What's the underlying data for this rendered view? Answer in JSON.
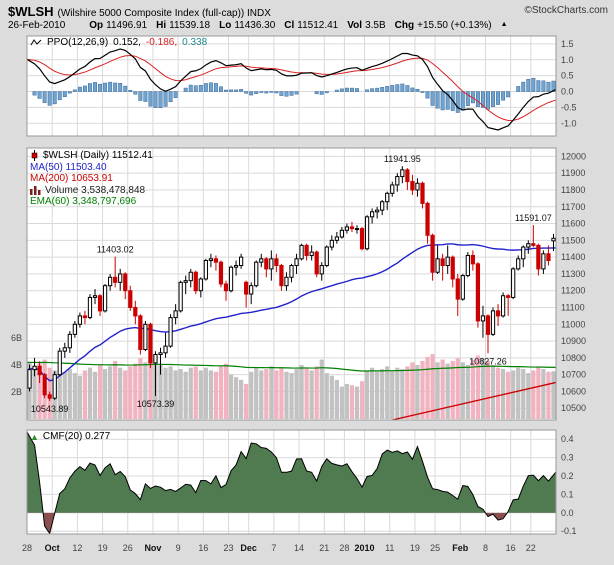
{
  "header": {
    "symbol": "$WLSH",
    "description": "(Wilshire 5000 Composite Index (full-cap)) INDX",
    "source": "©StockCharts.com",
    "date": "26-Feb-2010",
    "quote": {
      "op_label": "Op",
      "op": "11496.91",
      "hi_label": "Hi",
      "hi": "11539.18",
      "lo_label": "Lo",
      "lo": "11436.30",
      "cl_label": "Cl",
      "cl": "11512.41",
      "vol_label": "Vol",
      "vol": "3.5B",
      "chg_label": "Chg",
      "chg": "+15.50 (+0.13%)"
    }
  },
  "legends": {
    "ppo": {
      "name": "PPO(12,26,9)",
      "line": "0.152,",
      "signal": "-0.186,",
      "hist": "0.338"
    },
    "main": {
      "series": "$WLSH (Daily) 11512.41",
      "ma50": "MA(50) 11503.40",
      "ma200": "MA(200) 10653.91",
      "volume": "Volume 3,538,478,848",
      "ema60": "EMA(60) 3,348,797,696"
    },
    "cmf": {
      "name": "CMF(20) 0.277"
    }
  },
  "icons": {
    "ppo": "line-squiggle-icon",
    "series": "candlestick-icon",
    "volume": "volume-bars-icon",
    "cmf": "area-triangle-icon",
    "change": "up-triangle-icon"
  },
  "colors": {
    "background": "#dcdcdc",
    "panel_bg": "#ffffff",
    "grid": "#d9d9d9",
    "border": "#999999",
    "axis_text": "#444444",
    "candle_up": "#000000",
    "candle_down": "#cc0000",
    "ma50": "#2222cc",
    "ma200": "#cc0000",
    "vol_up": "#c2c2c2",
    "vol_down": "#f2b3c0",
    "vol_ema": "#008000",
    "ppo_line": "#000000",
    "ppo_signal": "#dd2222",
    "ppo_hist": "#6fa3d0",
    "ppo_hist_border": "#39689a",
    "ppo_hist_text": "#1f8a8a",
    "cmf_pos": "#507a50",
    "cmf_neg": "#8a4f4f",
    "cmf_icon": "#2f8f2f",
    "ema60_text": "#008000",
    "volume_text": "#222222",
    "series_text": "#000000",
    "brand_text": "#333333"
  },
  "chart_data": {
    "type": "candlestick",
    "title": "$WLSH Wilshire 5000 Composite Index (full-cap), Daily",
    "panels": [
      "PPO(12,26,9)",
      "Price with MA(50), MA(200), Volume, EMA(60)",
      "CMF(20)"
    ],
    "legend_position": "top-left of each panel",
    "grid": true,
    "price_axis": {
      "min": 10500,
      "max": 12000,
      "step": 100
    },
    "ppo_axis": {
      "min": -1.0,
      "max": 1.5,
      "step": 0.5
    },
    "cmf_axis": {
      "min": -0.1,
      "max": 0.4,
      "step": 0.1
    },
    "volume_axis_labels": [
      [
        6,
        "6B"
      ],
      [
        4,
        "4B"
      ],
      [
        2,
        "2B"
      ]
    ],
    "x_ticks": [
      [
        0,
        "28",
        0
      ],
      [
        5,
        "Oct",
        1
      ],
      [
        10,
        "12",
        0
      ],
      [
        15,
        "19",
        0
      ],
      [
        20,
        "26",
        0
      ],
      [
        25,
        "Nov",
        1
      ],
      [
        30,
        "9",
        0
      ],
      [
        35,
        "16",
        0
      ],
      [
        40,
        "23",
        0
      ],
      [
        44,
        "Dec",
        1
      ],
      [
        49,
        "7",
        0
      ],
      [
        54,
        "14",
        0
      ],
      [
        59,
        "21",
        0
      ],
      [
        63,
        "28",
        0
      ],
      [
        67,
        "2010",
        1
      ],
      [
        72,
        "11",
        0
      ],
      [
        77,
        "19",
        0
      ],
      [
        81,
        "25",
        0
      ],
      [
        86,
        "Feb",
        1
      ],
      [
        91,
        "8",
        0
      ],
      [
        96,
        "16",
        0
      ],
      [
        100,
        "22",
        0
      ]
    ],
    "candles_ohlc": [
      [
        10620,
        10760,
        10600,
        10730
      ],
      [
        10730,
        10800,
        10690,
        10750
      ],
      [
        10750,
        10780,
        10650,
        10700
      ],
      [
        10700,
        10710,
        10560,
        10580
      ],
      [
        10580,
        10600,
        10543.89,
        10560
      ],
      [
        10560,
        10720,
        10550,
        10700
      ],
      [
        10700,
        10860,
        10690,
        10840
      ],
      [
        10840,
        10890,
        10800,
        10860
      ],
      [
        10860,
        10960,
        10830,
        10940
      ],
      [
        10940,
        11020,
        10920,
        11000
      ],
      [
        11000,
        11070,
        10980,
        11050
      ],
      [
        11050,
        11080,
        11000,
        11040
      ],
      [
        11040,
        11180,
        11030,
        11160
      ],
      [
        11160,
        11210,
        11120,
        11170
      ],
      [
        11170,
        11180,
        11050,
        11080
      ],
      [
        11080,
        11240,
        11070,
        11230
      ],
      [
        11230,
        11300,
        11200,
        11280
      ],
      [
        11280,
        11403.02,
        11220,
        11250
      ],
      [
        11250,
        11330,
        11200,
        11300
      ],
      [
        11300,
        11310,
        11150,
        11200
      ],
      [
        11200,
        11230,
        11080,
        11100
      ],
      [
        11100,
        11140,
        11000,
        11050
      ],
      [
        11050,
        11060,
        10820,
        10850
      ],
      [
        10850,
        11020,
        10840,
        11000
      ],
      [
        11000,
        11010,
        10740,
        10770
      ],
      [
        10770,
        10840,
        10573.39,
        10820
      ],
      [
        10820,
        10860,
        10700,
        10830
      ],
      [
        10830,
        10950,
        10800,
        10870
      ],
      [
        10870,
        11060,
        10860,
        11040
      ],
      [
        11040,
        11120,
        11000,
        11080
      ],
      [
        11080,
        11260,
        11070,
        11250
      ],
      [
        11250,
        11290,
        11180,
        11260
      ],
      [
        11260,
        11330,
        11220,
        11310
      ],
      [
        11310,
        11320,
        11180,
        11200
      ],
      [
        11200,
        11280,
        11160,
        11270
      ],
      [
        11270,
        11390,
        11260,
        11380
      ],
      [
        11380,
        11420,
        11340,
        11390
      ],
      [
        11390,
        11410,
        11320,
        11370
      ],
      [
        11370,
        11380,
        11220,
        11240
      ],
      [
        11240,
        11260,
        11140,
        11200
      ],
      [
        11200,
        11350,
        11190,
        11340
      ],
      [
        11340,
        11380,
        11290,
        11350
      ],
      [
        11350,
        11420,
        11330,
        11400
      ],
      [
        11250,
        11260,
        11100,
        11180
      ],
      [
        11180,
        11250,
        11120,
        11230
      ],
      [
        11230,
        11380,
        11220,
        11370
      ],
      [
        11370,
        11420,
        11340,
        11390
      ],
      [
        11390,
        11400,
        11280,
        11330
      ],
      [
        11330,
        11440,
        11260,
        11390
      ],
      [
        11390,
        11420,
        11310,
        11350
      ],
      [
        11350,
        11360,
        11200,
        11230
      ],
      [
        11230,
        11310,
        11200,
        11280
      ],
      [
        11280,
        11360,
        11250,
        11350
      ],
      [
        11350,
        11420,
        11300,
        11390
      ],
      [
        11390,
        11480,
        11380,
        11470
      ],
      [
        11470,
        11480,
        11380,
        11410
      ],
      [
        11410,
        11470,
        11380,
        11430
      ],
      [
        11430,
        11440,
        11280,
        11300
      ],
      [
        11300,
        11370,
        11260,
        11350
      ],
      [
        11350,
        11470,
        11340,
        11460
      ],
      [
        11460,
        11530,
        11440,
        11500
      ],
      [
        11500,
        11550,
        11480,
        11520
      ],
      [
        11520,
        11580,
        11510,
        11560
      ],
      [
        11560,
        11600,
        11540,
        11580
      ],
      [
        11580,
        11610,
        11550,
        11570
      ],
      [
        11570,
        11590,
        11540,
        11570
      ],
      [
        11570,
        11580,
        11440,
        11450
      ],
      [
        11450,
        11650,
        11440,
        11640
      ],
      [
        11640,
        11690,
        11600,
        11670
      ],
      [
        11670,
        11700,
        11630,
        11680
      ],
      [
        11680,
        11740,
        11650,
        11730
      ],
      [
        11730,
        11790,
        11680,
        11780
      ],
      [
        11780,
        11850,
        11760,
        11830
      ],
      [
        11830,
        11900,
        11790,
        11880
      ],
      [
        11880,
        11941.95,
        11840,
        11920
      ],
      [
        11920,
        11930,
        11800,
        11850
      ],
      [
        11850,
        11890,
        11770,
        11800
      ],
      [
        11800,
        11870,
        11760,
        11840
      ],
      [
        11840,
        11850,
        11690,
        11720
      ],
      [
        11720,
        11730,
        11480,
        11530
      ],
      [
        11530,
        11540,
        11260,
        11310
      ],
      [
        11310,
        11470,
        11300,
        11390
      ],
      [
        11390,
        11420,
        11260,
        11350
      ],
      [
        11350,
        11470,
        11300,
        11400
      ],
      [
        11400,
        11410,
        11220,
        11270
      ],
      [
        11270,
        11300,
        11050,
        11150
      ],
      [
        11150,
        11300,
        11140,
        11290
      ],
      [
        11290,
        11430,
        11280,
        11410
      ],
      [
        11410,
        11440,
        11320,
        11360
      ],
      [
        11360,
        11370,
        10980,
        11020
      ],
      [
        11020,
        11110,
        10920,
        11050
      ],
      [
        11050,
        11060,
        10827.26,
        10940
      ],
      [
        10940,
        11100,
        10930,
        11080
      ],
      [
        11080,
        11120,
        10990,
        11050
      ],
      [
        11050,
        11190,
        11040,
        11170
      ],
      [
        11170,
        11180,
        11050,
        11160
      ],
      [
        11160,
        11340,
        11150,
        11330
      ],
      [
        11330,
        11410,
        11320,
        11390
      ],
      [
        11390,
        11470,
        11340,
        11460
      ],
      [
        11460,
        11500,
        11420,
        11480
      ],
      [
        11480,
        11591.07,
        11460,
        11470
      ],
      [
        11470,
        11480,
        11290,
        11330
      ],
      [
        11330,
        11440,
        11300,
        11420
      ],
      [
        11420,
        11470,
        11350,
        11380
      ],
      [
        11496.91,
        11539.18,
        11436.3,
        11512.41
      ]
    ],
    "volumes_billions": [
      4.2,
      3.9,
      4.1,
      4.4,
      3.8,
      3.6,
      3.9,
      3.5,
      3.7,
      3.4,
      3.2,
      3.6,
      3.8,
      3.5,
      4.0,
      3.7,
      3.9,
      4.3,
      3.8,
      3.6,
      3.9,
      4.1,
      4.5,
      4.2,
      4.4,
      4.6,
      4.0,
      3.8,
      3.9,
      3.6,
      3.7,
      3.5,
      3.8,
      3.9,
      3.6,
      3.8,
      3.6,
      3.5,
      3.9,
      4.1,
      3.3,
      3.1,
      2.9,
      2.6,
      3.5,
      3.8,
      3.6,
      3.7,
      3.9,
      3.6,
      3.8,
      3.5,
      3.4,
      3.7,
      4.0,
      3.8,
      3.6,
      3.9,
      4.4,
      3.4,
      3.2,
      2.9,
      2.4,
      2.6,
      2.5,
      2.4,
      2.8,
      3.6,
      3.8,
      3.5,
      3.7,
      3.9,
      3.6,
      3.8,
      3.7,
      3.9,
      4.2,
      4.0,
      4.3,
      4.6,
      4.8,
      4.2,
      4.4,
      4.1,
      4.3,
      4.5,
      4.2,
      4.0,
      4.4,
      4.7,
      4.5,
      4.3,
      4.0,
      3.8,
      3.7,
      3.5,
      3.6,
      3.8,
      3.7,
      3.4,
      3.6,
      3.9,
      3.7,
      3.5,
      3.54
    ],
    "annotations": [
      {
        "i": 4,
        "price": 10543.89,
        "label": "10543.89",
        "pos": "below"
      },
      {
        "i": 17,
        "price": 11403.02,
        "label": "11403.02",
        "pos": "above"
      },
      {
        "i": 25,
        "price": 10573.39,
        "label": "10573.39",
        "pos": "below"
      },
      {
        "i": 74,
        "price": 11941.95,
        "label": "11941.95",
        "pos": "above"
      },
      {
        "i": 91,
        "price": 10827.26,
        "label": "10827.26",
        "pos": "below"
      },
      {
        "i": 100,
        "price": 11591.07,
        "label": "11591.07",
        "pos": "above"
      }
    ],
    "ma200_segment": {
      "from_index": 72,
      "from_price": 10430,
      "to_price": 10653.91
    },
    "indicators": {
      "ppo": {
        "params": [
          12,
          26,
          9
        ],
        "last_values": {
          "ppo": 0.152,
          "signal": -0.186,
          "histogram": 0.338
        }
      },
      "ma50_last": 11503.4,
      "ma200_last": 10653.91,
      "volume_last": 3538478848,
      "volume_ema60_last": 3348797696,
      "cmf": {
        "params": [
          20
        ],
        "last_value": 0.277
      }
    }
  }
}
